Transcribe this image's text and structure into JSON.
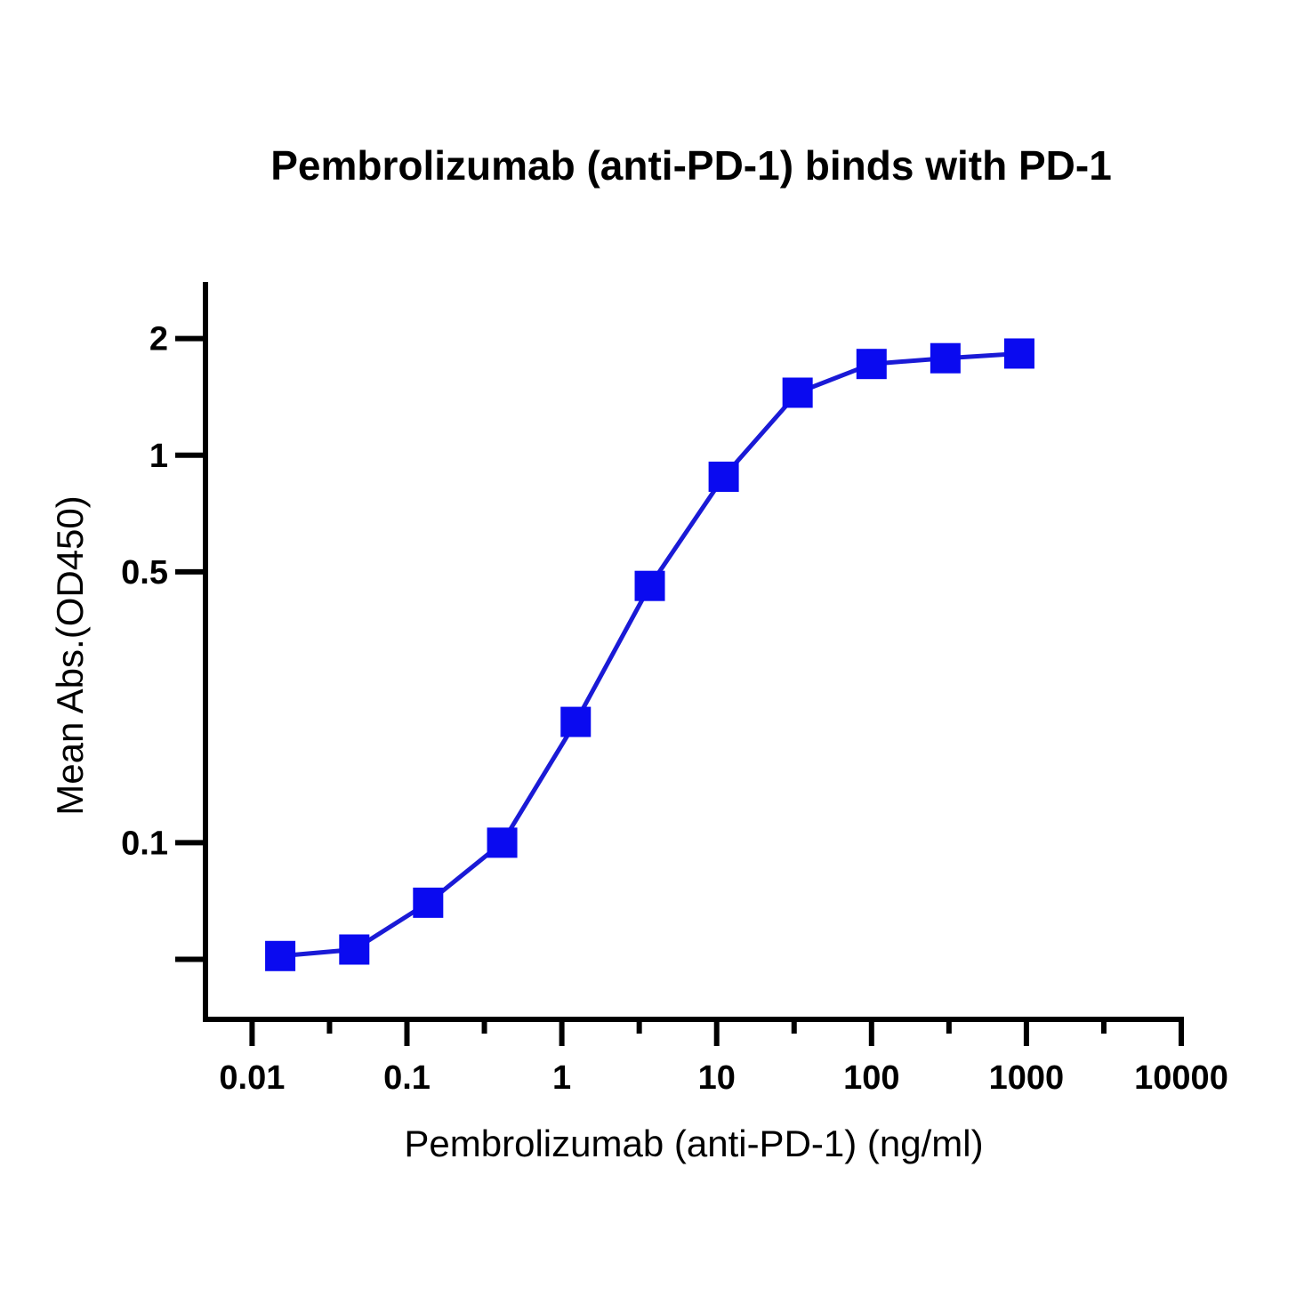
{
  "chart_data": {
    "type": "line",
    "title": "Pembrolizumab (anti-PD-1) binds with PD-1",
    "xlabel": "Pembrolizumab (anti-PD-1) (ng/ml)",
    "ylabel": "Mean Abs.(OD450)",
    "xscale": "log",
    "yscale": "log",
    "xlim": [
      0.005,
      10000
    ],
    "ylim": [
      0.035,
      2.8
    ],
    "x_ticks": [
      0.01,
      0.1,
      1,
      10,
      100,
      1000,
      10000
    ],
    "x_tick_labels": [
      "0.01",
      "0.1",
      "1",
      "10",
      "100",
      "1000",
      "10000"
    ],
    "y_ticks": [
      0.05,
      0.1,
      0.5,
      1,
      2
    ],
    "y_tick_labels": [
      "",
      "0.1",
      "0.5",
      "1",
      "2"
    ],
    "grid": false,
    "series": [
      {
        "color": "#0a0af0",
        "line_color": "#1a1ad6",
        "marker": "square",
        "x": [
          0.0152,
          0.0457,
          0.137,
          0.412,
          1.23,
          3.7,
          11.1,
          33.3,
          100,
          300,
          900
        ],
        "y": [
          0.051,
          0.053,
          0.07,
          0.1,
          0.205,
          0.46,
          0.88,
          1.45,
          1.72,
          1.78,
          1.83
        ]
      }
    ]
  }
}
